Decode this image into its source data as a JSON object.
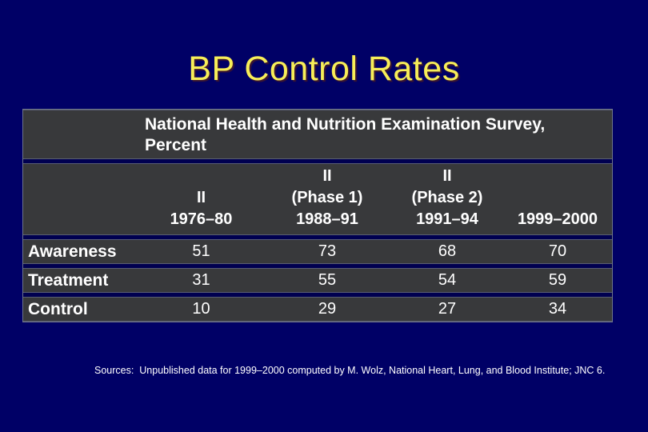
{
  "colors": {
    "background": "#000066",
    "title_text": "#F7EE58",
    "panel_fill": "#38393B",
    "panel_gap": "#000050",
    "table_text": "#FFFFFF"
  },
  "slide": {
    "title": "BP Control Rates",
    "source_note": "Sources:  Unpublished data for 1999–2000 computed by M. Wolz, National Heart, Lung, and Blood Institute; JNC 6."
  },
  "table": {
    "header_line1": "National Health and Nutrition Examination Survey,",
    "header_line2": "Percent",
    "col_headers": [
      [
        "II",
        "1976–80"
      ],
      [
        "II",
        "(Phase 1)",
        "1988–91"
      ],
      [
        "II",
        "(Phase 2)",
        "1991–94"
      ],
      [
        "1999–2000"
      ]
    ],
    "rows": [
      {
        "label": "Awareness",
        "values": [
          "51",
          "73",
          "68",
          "70"
        ]
      },
      {
        "label": "Treatment",
        "values": [
          "31",
          "55",
          "54",
          "59"
        ]
      },
      {
        "label": "Control",
        "values": [
          "10",
          "29",
          "27",
          "34"
        ]
      }
    ]
  },
  "chart_data": {
    "type": "table",
    "title": "BP Control Rates",
    "subtitle": "National Health and Nutrition Examination Survey, Percent",
    "columns": [
      "II 1976–80",
      "II (Phase 1) 1988–91",
      "II (Phase 2) 1991–94",
      "1999–2000"
    ],
    "row_labels": [
      "Awareness",
      "Treatment",
      "Control"
    ],
    "series": [
      {
        "name": "Awareness",
        "values": [
          51,
          73,
          68,
          70
        ]
      },
      {
        "name": "Treatment",
        "values": [
          31,
          55,
          54,
          59
        ]
      },
      {
        "name": "Control",
        "values": [
          10,
          29,
          27,
          34
        ]
      }
    ],
    "units": "percent",
    "source": "Sources: Unpublished data for 1999–2000 computed by M. Wolz, National Heart, Lung, and Blood Institute; JNC 6."
  }
}
